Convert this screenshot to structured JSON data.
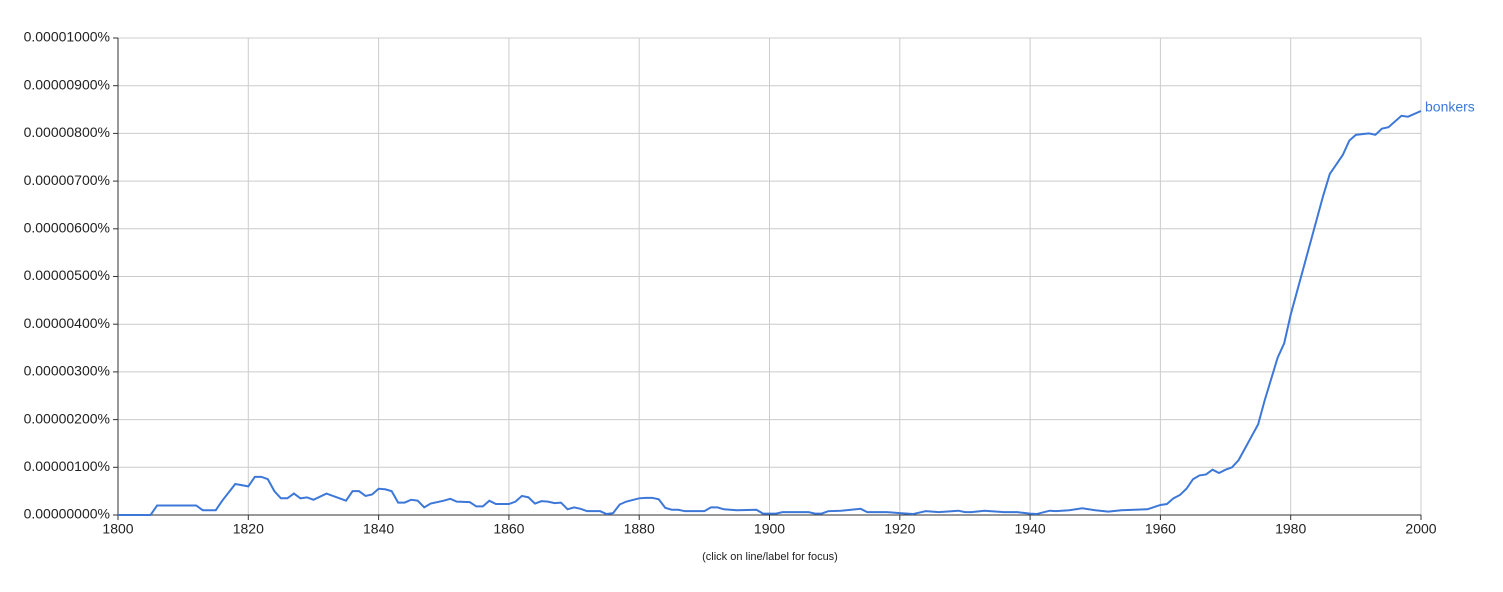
{
  "chart_data": {
    "type": "line",
    "note": "(click on line/label for focus)",
    "x": [
      1800,
      1802,
      1804,
      1805,
      1806,
      1808,
      1810,
      1812,
      1813,
      1815,
      1816,
      1818,
      1820,
      1821,
      1822,
      1823,
      1824,
      1825,
      1826,
      1827,
      1828,
      1829,
      1830,
      1832,
      1834,
      1835,
      1836,
      1837,
      1838,
      1839,
      1840,
      1841,
      1842,
      1843,
      1844,
      1845,
      1846,
      1847,
      1848,
      1850,
      1851,
      1852,
      1854,
      1855,
      1856,
      1857,
      1858,
      1860,
      1861,
      1862,
      1863,
      1864,
      1865,
      1866,
      1867,
      1868,
      1869,
      1870,
      1871,
      1872,
      1874,
      1875,
      1876,
      1877,
      1878,
      1880,
      1881,
      1882,
      1883,
      1884,
      1885,
      1886,
      1887,
      1890,
      1891,
      1892,
      1893,
      1895,
      1898,
      1899,
      1901,
      1902,
      1906,
      1907,
      1908,
      1909,
      1911,
      1914,
      1915,
      1918,
      1920,
      1922,
      1924,
      1926,
      1929,
      1930,
      1931,
      1933,
      1936,
      1938,
      1940,
      1941,
      1943,
      1944,
      1946,
      1948,
      1950,
      1952,
      1954,
      1958,
      1960,
      1961,
      1962,
      1963,
      1964,
      1965,
      1966,
      1967,
      1968,
      1969,
      1970,
      1971,
      1972,
      1973,
      1974,
      1975,
      1976,
      1977,
      1978,
      1979,
      1980,
      1981,
      1982,
      1983,
      1984,
      1985,
      1986,
      1987,
      1988,
      1989,
      1990,
      1992,
      1993,
      1994,
      1995,
      1997,
      1998,
      2000
    ],
    "series": [
      {
        "name": "bonkers",
        "color": "#3d78d8",
        "values": [
          0,
          0,
          0,
          0,
          2e-07,
          2e-07,
          2e-07,
          2e-07,
          1e-07,
          1e-07,
          3e-07,
          6.5e-07,
          6e-07,
          8e-07,
          8e-07,
          7.5e-07,
          5e-07,
          3.5e-07,
          3.5e-07,
          4.5e-07,
          3.5e-07,
          3.7e-07,
          3.2e-07,
          4.5e-07,
          3.5e-07,
          3e-07,
          5e-07,
          5e-07,
          4e-07,
          4.3e-07,
          5.5e-07,
          5.4e-07,
          5e-07,
          2.6e-07,
          2.6e-07,
          3.2e-07,
          3e-07,
          1.6e-07,
          2.4e-07,
          3e-07,
          3.4e-07,
          2.8e-07,
          2.7e-07,
          1.8e-07,
          1.8e-07,
          3e-07,
          2.3e-07,
          2.3e-07,
          2.8e-07,
          4e-07,
          3.7e-07,
          2.4e-07,
          2.9e-07,
          2.8e-07,
          2.5e-07,
          2.6e-07,
          1.2e-07,
          1.6e-07,
          1.3e-07,
          8e-08,
          8e-08,
          2e-08,
          4e-08,
          2.2e-07,
          2.8e-07,
          3.5e-07,
          3.6e-07,
          3.6e-07,
          3.3e-07,
          1.5e-07,
          1.1e-07,
          1.1e-07,
          8e-08,
          8e-08,
          1.6e-07,
          1.6e-07,
          1.2e-07,
          1e-07,
          1.1e-07,
          3e-08,
          3e-08,
          6e-08,
          6e-08,
          3e-08,
          3e-08,
          8e-08,
          9e-08,
          1.3e-07,
          6e-08,
          6e-08,
          4e-08,
          2e-08,
          8e-08,
          6e-08,
          9e-08,
          6e-08,
          6e-08,
          9e-08,
          6e-08,
          6e-08,
          3e-08,
          2e-08,
          9e-08,
          8e-08,
          1e-07,
          1.4e-07,
          1e-07,
          7e-08,
          1e-07,
          1.2e-07,
          2.1e-07,
          2.3e-07,
          3.5e-07,
          4.2e-07,
          5.5e-07,
          7.5e-07,
          8.3e-07,
          8.5e-07,
          9.5e-07,
          8.8e-07,
          9.5e-07,
          1e-06,
          1.15e-06,
          1.4e-06,
          1.65e-06,
          1.9e-06,
          2.4e-06,
          2.85e-06,
          3.3e-06,
          3.6e-06,
          4.2e-06,
          4.7e-06,
          5.2e-06,
          5.7e-06,
          6.2e-06,
          6.7e-06,
          7.15e-06,
          7.35e-06,
          7.55e-06,
          7.85e-06,
          7.97e-06,
          8e-06,
          7.97e-06,
          8.1e-06,
          8.13e-06,
          8.37e-06,
          8.35e-06,
          8.47e-06
        ]
      }
    ],
    "xlim": [
      1800,
      2000
    ],
    "xticks": [
      1800,
      1820,
      1840,
      1860,
      1880,
      1900,
      1920,
      1940,
      1960,
      1980,
      2000
    ],
    "ylim": [
      0,
      1e-05
    ],
    "yticks": [
      {
        "value": 0,
        "label": "0.00000000%"
      },
      {
        "value": 1e-06,
        "label": "0.00000100%"
      },
      {
        "value": 2e-06,
        "label": "0.00000200%"
      },
      {
        "value": 3e-06,
        "label": "0.00000300%"
      },
      {
        "value": 4e-06,
        "label": "0.00000400%"
      },
      {
        "value": 5e-06,
        "label": "0.00000500%"
      },
      {
        "value": 6e-06,
        "label": "0.00000600%"
      },
      {
        "value": 7e-06,
        "label": "0.00000700%"
      },
      {
        "value": 8e-06,
        "label": "0.00000800%"
      },
      {
        "value": 9e-06,
        "label": "0.00000900%"
      },
      {
        "value": 1e-05,
        "label": "0.00001000%"
      }
    ],
    "grid": true
  }
}
